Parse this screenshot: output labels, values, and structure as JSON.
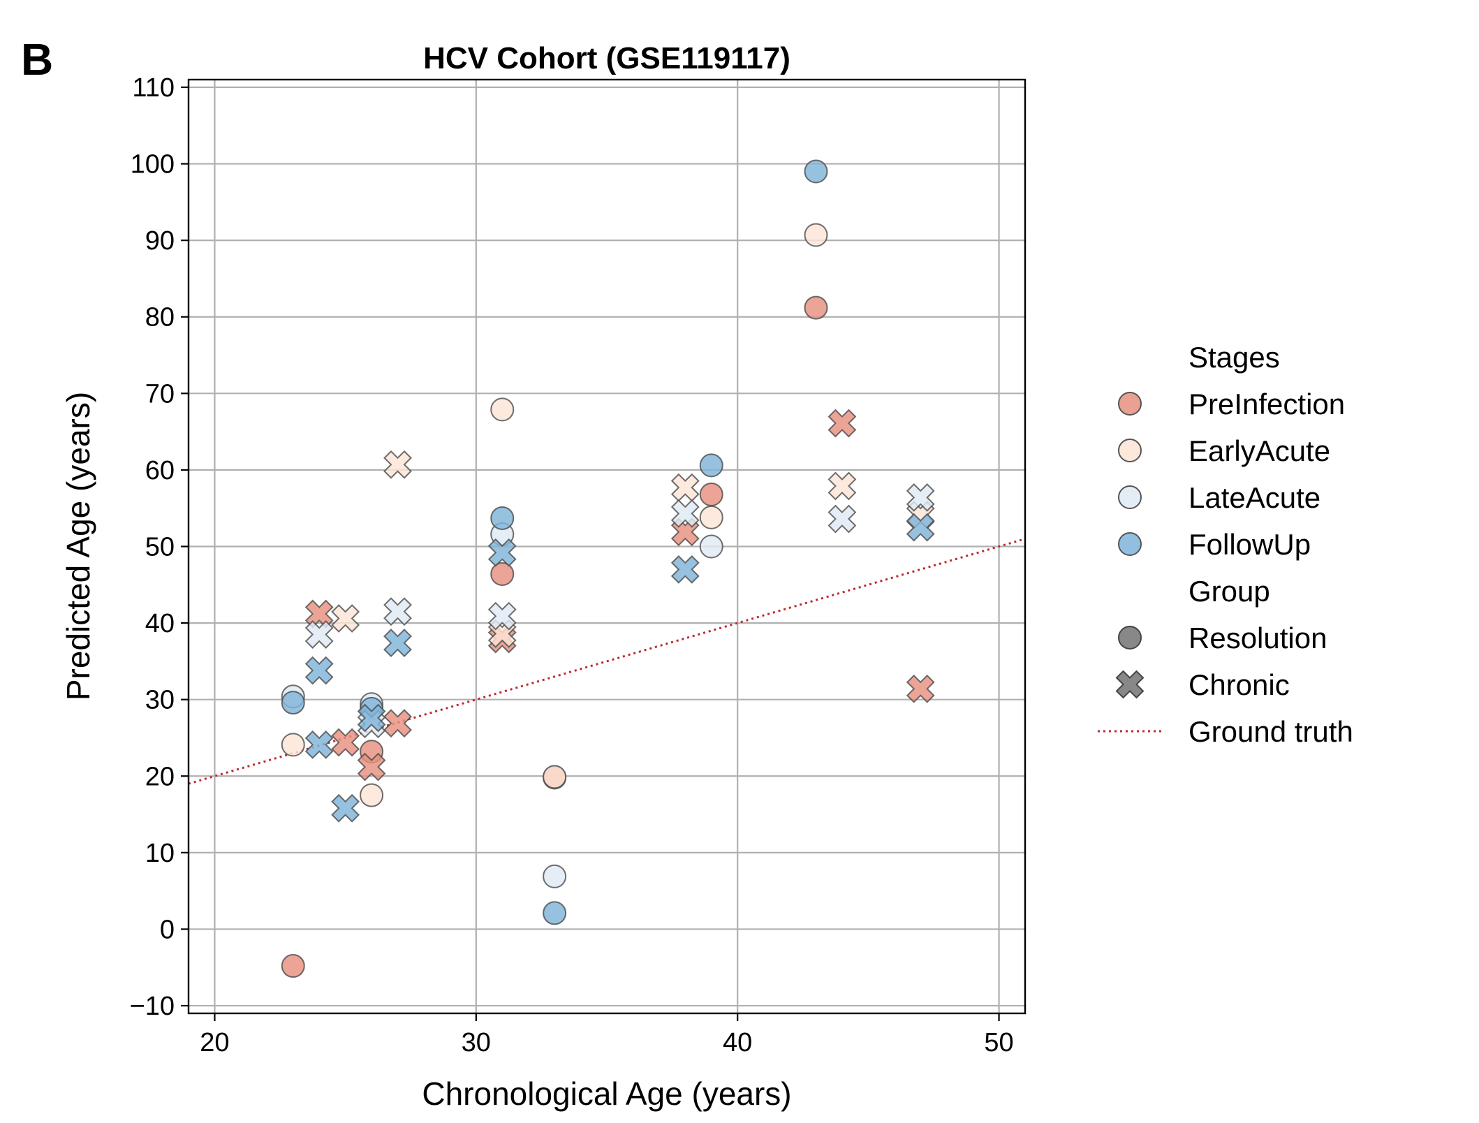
{
  "panel_label": "B",
  "chart_data": {
    "type": "scatter",
    "title": "HCV Cohort (GSE119117)",
    "xlabel": "Chronological Age (years)",
    "ylabel": "Predicted Age (years)",
    "xlim": [
      19,
      51
    ],
    "ylim": [
      -11,
      111
    ],
    "xticks": [
      20,
      30,
      40,
      50
    ],
    "yticks": [
      -10,
      0,
      10,
      20,
      30,
      40,
      50,
      60,
      70,
      80,
      90,
      100,
      110
    ],
    "xtick_labels": [
      "20",
      "30",
      "40",
      "50"
    ],
    "ytick_labels": [
      "−10",
      "0",
      "10",
      "20",
      "30",
      "40",
      "50",
      "60",
      "70",
      "80",
      "90",
      "100",
      "110"
    ],
    "grid": true,
    "legend_position": "right, outside plot",
    "legend": {
      "stages_title": "Stages",
      "group_title": "Group",
      "stages": [
        {
          "name": "PreInfection",
          "color": "#e6907f"
        },
        {
          "name": "EarlyAcute",
          "color": "#fde4d6"
        },
        {
          "name": "LateAcute",
          "color": "#dfeaf4"
        },
        {
          "name": "FollowUp",
          "color": "#7fb4d9"
        }
      ],
      "groups": [
        {
          "name": "Resolution",
          "marker": "circle"
        },
        {
          "name": "Chronic",
          "marker": "x"
        }
      ],
      "line_label": "Ground truth",
      "line_color": "#c0282b"
    },
    "ground_truth": {
      "style": "dotted",
      "x": [
        19,
        51
      ],
      "y": [
        19,
        51
      ]
    },
    "series": [
      {
        "name": "PreInfection",
        "group": "Resolution",
        "points": [
          [
            23,
            -4.8
          ],
          [
            26,
            23.2
          ],
          [
            31,
            46.4
          ],
          [
            33,
            19.8
          ],
          [
            39,
            56.8
          ],
          [
            43,
            81.2
          ]
        ]
      },
      {
        "name": "EarlyAcute",
        "group": "Resolution",
        "points": [
          [
            23,
            24.1
          ],
          [
            26,
            17.5
          ],
          [
            31,
            67.9
          ],
          [
            33,
            19.9
          ],
          [
            39,
            53.8
          ],
          [
            43,
            90.7
          ]
        ]
      },
      {
        "name": "LateAcute",
        "group": "Resolution",
        "points": [
          [
            23,
            30.4
          ],
          [
            26,
            29.4
          ],
          [
            31,
            51.6
          ],
          [
            33,
            6.9
          ],
          [
            39,
            50.0
          ]
        ]
      },
      {
        "name": "FollowUp",
        "group": "Resolution",
        "points": [
          [
            23,
            29.6
          ],
          [
            26,
            28.8
          ],
          [
            31,
            53.7
          ],
          [
            33,
            2.1
          ],
          [
            39,
            60.6
          ],
          [
            43,
            99.0
          ]
        ]
      },
      {
        "name": "PreInfection",
        "group": "Chronic",
        "points": [
          [
            24,
            41.2
          ],
          [
            25,
            24.4
          ],
          [
            26,
            21.2
          ],
          [
            27,
            26.9
          ],
          [
            31,
            37.9
          ],
          [
            38,
            51.9
          ],
          [
            44,
            66.1
          ],
          [
            47,
            31.4
          ]
        ]
      },
      {
        "name": "EarlyAcute",
        "group": "Chronic",
        "points": [
          [
            25,
            40.6
          ],
          [
            27,
            60.7
          ],
          [
            31,
            38.6
          ],
          [
            38,
            57.7
          ],
          [
            44,
            57.9
          ],
          [
            47,
            54.1
          ]
        ]
      },
      {
        "name": "LateAcute",
        "group": "Chronic",
        "points": [
          [
            24,
            38.5
          ],
          [
            26,
            26.8
          ],
          [
            27,
            41.5
          ],
          [
            31,
            40.9
          ],
          [
            38,
            54.3
          ],
          [
            44,
            53.6
          ],
          [
            47,
            56.4
          ]
        ]
      },
      {
        "name": "FollowUp",
        "group": "Chronic",
        "points": [
          [
            24,
            24.1
          ],
          [
            24,
            33.8
          ],
          [
            25,
            15.8
          ],
          [
            26,
            27.6
          ],
          [
            27,
            37.4
          ],
          [
            31,
            49.2
          ],
          [
            38,
            47.0
          ],
          [
            47,
            52.5
          ]
        ]
      }
    ]
  }
}
